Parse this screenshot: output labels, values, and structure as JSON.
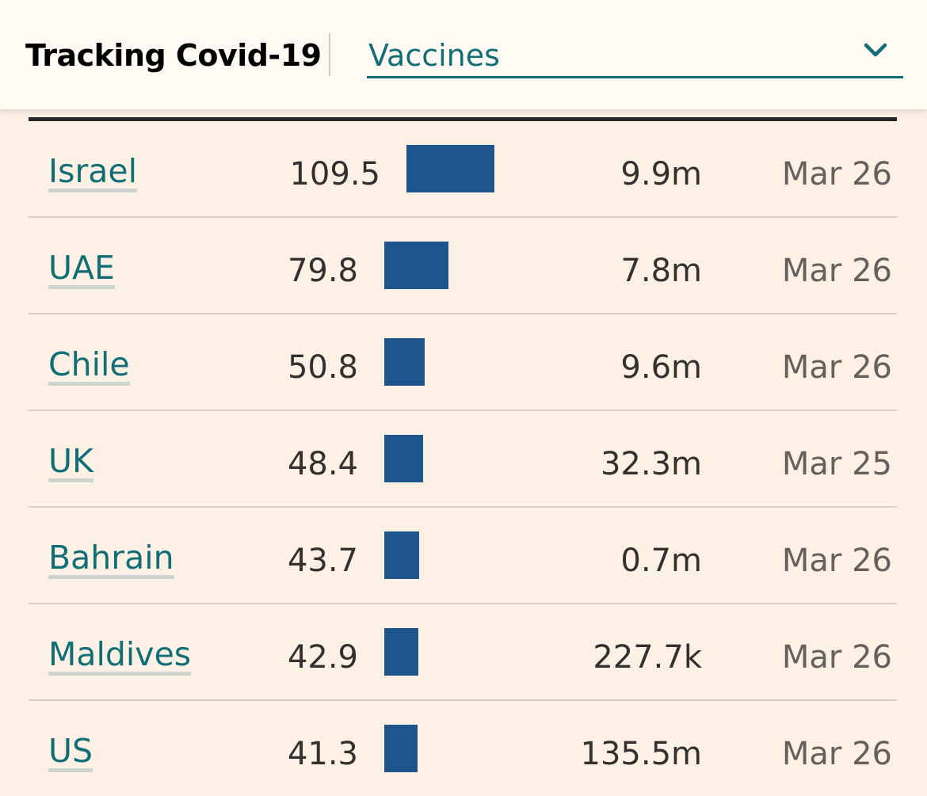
{
  "header": {
    "title": "Tracking Covid-19",
    "dropdown_value": "Vaccines"
  },
  "rows": [
    {
      "country": "Israel",
      "rate": "109.5",
      "rate_value": 109.5,
      "doses": "9.9m",
      "date": "Mar 26"
    },
    {
      "country": "UAE",
      "rate": "79.8",
      "rate_value": 79.8,
      "doses": "7.8m",
      "date": "Mar 26"
    },
    {
      "country": "Chile",
      "rate": "50.8",
      "rate_value": 50.8,
      "doses": "9.6m",
      "date": "Mar 26"
    },
    {
      "country": "UK",
      "rate": "48.4",
      "rate_value": 48.4,
      "doses": "32.3m",
      "date": "Mar 25"
    },
    {
      "country": "Bahrain",
      "rate": "43.7",
      "rate_value": 43.7,
      "doses": "0.7m",
      "date": "Mar 26"
    },
    {
      "country": "Maldives",
      "rate": "42.9",
      "rate_value": 42.9,
      "doses": "227.7k",
      "date": "Mar 26"
    },
    {
      "country": "US",
      "rate": "41.3",
      "rate_value": 41.3,
      "doses": "135.5m",
      "date": "Mar 26"
    }
  ],
  "colors": {
    "accent": "#116e76",
    "bar": "#1e558c",
    "background": "#fdf1e5"
  },
  "icons": {
    "dropdown": "chevron-down-icon"
  }
}
